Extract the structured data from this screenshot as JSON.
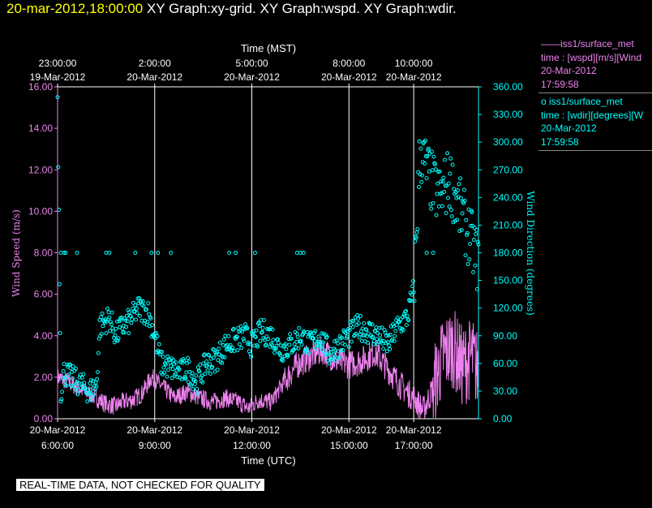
{
  "header": {
    "timestamp": "20-mar-2012,18:00:00",
    "graphs": "XY Graph:xy-grid.  XY Graph:wspd.  XY Graph:wdir."
  },
  "legend": {
    "wspd": {
      "title": "——iss1/surface_met",
      "var": "time : [wspd][m/s][Wind",
      "date": "20-Mar-2012",
      "time": "17:59:58"
    },
    "wdir": {
      "title": "o  iss1/surface_met",
      "var": "time : [wdir][degrees][W",
      "date": "20-Mar-2012",
      "time": "17:59:58"
    }
  },
  "footer": "REAL-TIME DATA, NOT CHECKED FOR QUALITY",
  "colors": {
    "wspd": "#ee82ee",
    "wdir": "#00ffff",
    "grid": "#ffffff",
    "header_time": "#ffff00"
  },
  "chart_data": {
    "type": "line",
    "top_axis_label": "Time (MST)",
    "top_ticks": [
      {
        "t": 5.0,
        "line1": "23:00:00",
        "line2": "19-Mar-2012"
      },
      {
        "t": 8.0,
        "line1": "2:00:00",
        "line2": "20-Mar-2012"
      },
      {
        "t": 11.0,
        "line1": "5:00:00",
        "line2": "20-Mar-2012"
      },
      {
        "t": 14.0,
        "line1": "8:00:00",
        "line2": "20-Mar-2012"
      },
      {
        "t": 16.0,
        "line1": "10:00:00",
        "line2": "20-Mar-2012"
      }
    ],
    "xlabel": "Time (UTC)",
    "bottom_ticks": [
      {
        "t": 5.0,
        "line1": "20-Mar-2012",
        "line2": "6:00:00"
      },
      {
        "t": 8.0,
        "line1": "20-Mar-2012",
        "line2": "9:00:00"
      },
      {
        "t": 11.0,
        "line1": "20-Mar-2012",
        "line2": "12:00:00"
      },
      {
        "t": 14.0,
        "line1": "20-Mar-2012",
        "line2": "15:00:00"
      },
      {
        "t": 16.0,
        "line1": "20-Mar-2012",
        "line2": "17:00:00"
      }
    ],
    "xlim": [
      5.0,
      18.0
    ],
    "grid_x": [
      8.0,
      11.0,
      14.0,
      16.0
    ],
    "ylabel_left": "Wind Speed (m/s)",
    "ylim_left": [
      0,
      16
    ],
    "left_ticks": [
      "0.00",
      "2.00",
      "4.00",
      "6.00",
      "8.00",
      "10.00",
      "12.00",
      "14.00",
      "16.00"
    ],
    "ylabel_right": "Wind Direction (degrees)",
    "ylim_right": [
      0,
      360
    ],
    "right_ticks": [
      "0.00",
      "30.00",
      "60.00",
      "90.00",
      "120.00",
      "150.00",
      "180.00",
      "210.00",
      "240.00",
      "270.00",
      "300.00",
      "330.00",
      "360.00"
    ],
    "series": [
      {
        "name": "iss1/surface_met wspd",
        "x": [
          5.0,
          5.3,
          5.6,
          6.0,
          6.5,
          6.8,
          7.0,
          7.3,
          7.6,
          7.9,
          8.2,
          8.6,
          9.0,
          9.4,
          9.8,
          10.2,
          10.6,
          10.9,
          11.2,
          11.6,
          12.0,
          12.4,
          12.8,
          13.2,
          13.6,
          14.0,
          14.4,
          14.8,
          15.2,
          15.6,
          16.0,
          16.3,
          16.6,
          16.9,
          17.2,
          17.5,
          17.8,
          18.0
        ],
        "y": [
          2.0,
          1.8,
          1.5,
          1.2,
          0.7,
          0.6,
          0.8,
          0.9,
          1.2,
          2.0,
          1.6,
          1.0,
          1.3,
          1.0,
          0.8,
          1.0,
          0.8,
          0.5,
          0.9,
          0.8,
          1.8,
          2.6,
          3.0,
          3.3,
          2.8,
          2.6,
          2.8,
          3.2,
          2.4,
          1.6,
          1.0,
          0.4,
          1.5,
          3.0,
          3.5,
          2.5,
          3.0,
          2.2
        ]
      },
      {
        "name": "iss1/surface_met wdir",
        "x": [
          5.0,
          5.1,
          5.2,
          5.4,
          5.6,
          6.0,
          6.2,
          6.3,
          6.6,
          6.8,
          7.0,
          7.2,
          7.5,
          7.8,
          8.0,
          8.2,
          8.5,
          8.8,
          9.0,
          9.3,
          9.6,
          9.9,
          10.2,
          10.5,
          10.8,
          11.0,
          11.3,
          11.6,
          11.9,
          12.2,
          12.5,
          12.8,
          13.1,
          13.4,
          13.7,
          14.0,
          14.3,
          14.6,
          14.9,
          15.2,
          15.5,
          15.8,
          16.0,
          16.2,
          16.5,
          16.8,
          17.1,
          17.4,
          17.7,
          18.0
        ],
        "y": [
          350,
          30,
          50,
          45,
          40,
          30,
          35,
          100,
          110,
          90,
          100,
          105,
          120,
          115,
          90,
          60,
          55,
          50,
          55,
          40,
          60,
          65,
          80,
          85,
          90,
          80,
          95,
          90,
          75,
          80,
          90,
          80,
          90,
          70,
          80,
          90,
          100,
          95,
          90,
          80,
          100,
          110,
          140,
          290,
          260,
          240,
          260,
          230,
          200,
          170
        ]
      }
    ],
    "wdir_outliers_180": [
      5.1,
      5.2,
      5.25,
      5.6,
      6.5,
      6.6,
      7.4,
      7.9,
      8.1,
      8.5,
      10.3,
      10.5,
      11.1,
      12.4,
      12.5,
      12.6,
      16.4,
      16.6
    ],
    "grid": true,
    "legend_position": "right"
  }
}
